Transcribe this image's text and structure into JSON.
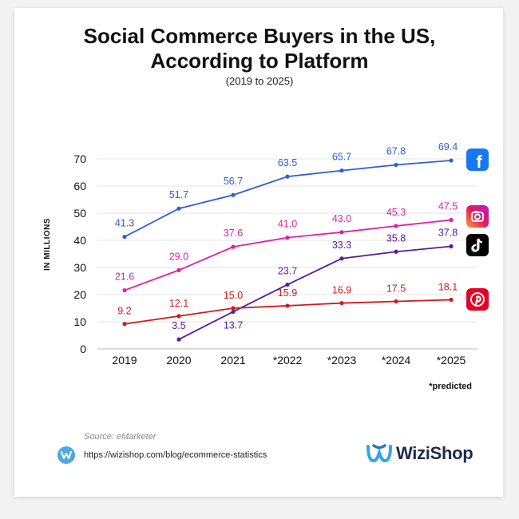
{
  "title_line1": "Social Commerce Buyers in the US,",
  "title_line2": "According to Platform",
  "subtitle": "(2019 to 2025)",
  "predicted_note": "*predicted",
  "source": "Source: eMarketer",
  "url": "https://wizishop.com/blog/ecommerce-statistics",
  "brand": "WiziShop",
  "icons": [
    "facebook-icon",
    "instagram-icon",
    "tiktok-icon",
    "pinterest-icon"
  ],
  "chart_data": {
    "type": "line",
    "title": "Social Commerce Buyers in the US, According to Platform",
    "subtitle": "(2019 to 2025)",
    "xlabel": "",
    "ylabel": "IN MILLIONS",
    "ylim": [
      0,
      70
    ],
    "yticks": [
      0,
      10,
      20,
      30,
      40,
      50,
      60,
      70
    ],
    "categories": [
      "2019",
      "2020",
      "2021",
      "*2022",
      "*2023",
      "*2024",
      "*2025"
    ],
    "grid": true,
    "series": [
      {
        "name": "Facebook",
        "color": "#2e5fd8",
        "values": [
          41.3,
          51.7,
          56.7,
          63.5,
          65.7,
          67.8,
          69.4
        ],
        "labels": [
          "41.3",
          "51.7",
          "56.7",
          "63.5",
          "65.7",
          "67.8",
          "69.4"
        ]
      },
      {
        "name": "Instagram",
        "color": "#e01fa8",
        "values": [
          21.6,
          29.0,
          37.6,
          41.0,
          43.0,
          45.3,
          47.5
        ],
        "labels": [
          "21.6",
          "29.0",
          "37.6",
          "41.0",
          "43.0",
          "45.3",
          "47.5"
        ]
      },
      {
        "name": "TikTok",
        "color": "#5b1a9e",
        "values": [
          null,
          3.5,
          13.7,
          23.7,
          33.3,
          35.8,
          37.8
        ],
        "labels": [
          null,
          "3.5",
          "13.7",
          "23.7",
          "33.3",
          "35.8",
          "37.8"
        ]
      },
      {
        "name": "Pinterest",
        "color": "#d21a1a",
        "values": [
          9.2,
          12.1,
          15.0,
          15.9,
          16.9,
          17.5,
          18.1
        ],
        "labels": [
          "9.2",
          "12.1",
          "15.0",
          "15.9",
          "16.9",
          "17.5",
          "18.1"
        ]
      }
    ]
  }
}
